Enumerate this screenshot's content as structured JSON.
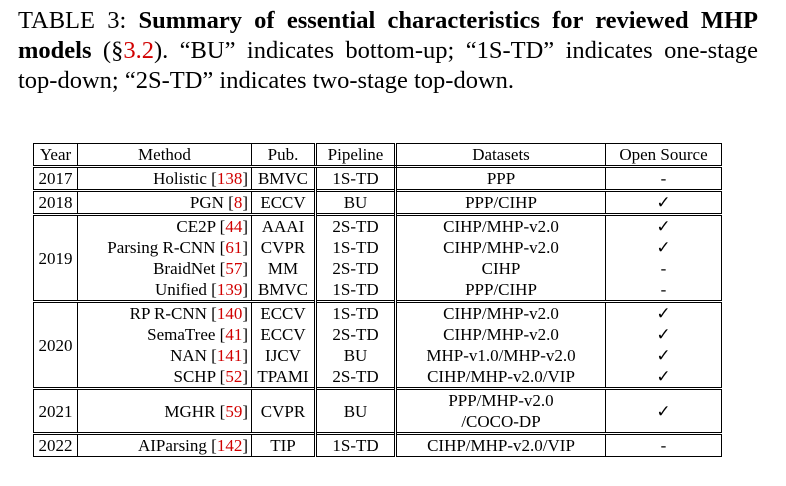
{
  "caption": {
    "label": "TABLE 3: ",
    "bold": "Summary of essential characteristics for reviewed MHP models",
    "pre_ref": " (§",
    "ref": "3.2",
    "rest": "). “BU” indicates bottom-up; “1S-TD” indicates one-stage top-down; “2S-TD” indicates two-stage top-down."
  },
  "table": {
    "header": [
      "Year",
      "Method",
      "Pub.",
      "Pipeline",
      "Datasets",
      "Open Source"
    ],
    "groups": [
      {
        "year": "2017",
        "rows": [
          {
            "method": [
              "Holistic [",
              "138",
              "]"
            ],
            "pub": "BMVC",
            "pipeline": "1S-TD",
            "datasets": [
              "PPP"
            ],
            "open": "-"
          }
        ]
      },
      {
        "year": "2018",
        "rows": [
          {
            "method": [
              "PGN [",
              "8",
              "]"
            ],
            "pub": "ECCV",
            "pipeline": "BU",
            "datasets": [
              "PPP/CIHP"
            ],
            "open": "✓"
          }
        ]
      },
      {
        "year": "2019",
        "rows": [
          {
            "method": [
              "CE2P [",
              "44",
              "]"
            ],
            "pub": "AAAI",
            "pipeline": "2S-TD",
            "datasets": [
              "CIHP/MHP-v2.0"
            ],
            "open": "✓"
          },
          {
            "method": [
              "Parsing R-CNN [",
              "61",
              "]"
            ],
            "pub": "CVPR",
            "pipeline": "1S-TD",
            "datasets": [
              "CIHP/MHP-v2.0"
            ],
            "open": "✓"
          },
          {
            "method": [
              "BraidNet [",
              "57",
              "]"
            ],
            "pub": "MM",
            "pipeline": "2S-TD",
            "datasets": [
              "CIHP"
            ],
            "open": "-"
          },
          {
            "method": [
              "Unified [",
              "139",
              "]"
            ],
            "pub": "BMVC",
            "pipeline": "1S-TD",
            "datasets": [
              "PPP/CIHP"
            ],
            "open": "-"
          }
        ]
      },
      {
        "year": "2020",
        "rows": [
          {
            "method": [
              "RP R-CNN [",
              "140",
              "]"
            ],
            "pub": "ECCV",
            "pipeline": "1S-TD",
            "datasets": [
              "CIHP/MHP-v2.0"
            ],
            "open": "✓"
          },
          {
            "method": [
              "SemaTree [",
              "41",
              "]"
            ],
            "pub": "ECCV",
            "pipeline": "2S-TD",
            "datasets": [
              "CIHP/MHP-v2.0"
            ],
            "open": "✓"
          },
          {
            "method": [
              "NAN [",
              "141",
              "]"
            ],
            "pub": "IJCV",
            "pipeline": "BU",
            "datasets": [
              "MHP-v1.0/MHP-v2.0"
            ],
            "open": "✓"
          },
          {
            "method": [
              "SCHP [",
              "52",
              "]"
            ],
            "pub": "TPAMI",
            "pipeline": "2S-TD",
            "datasets": [
              "CIHP/MHP-v2.0/VIP"
            ],
            "open": "✓"
          }
        ]
      },
      {
        "year": "2021",
        "rows": [
          {
            "method": [
              "MGHR [",
              "59",
              "]"
            ],
            "pub": "CVPR",
            "pipeline": "BU",
            "datasets": [
              "PPP/MHP-v2.0",
              "/COCO-DP"
            ],
            "open": "✓"
          }
        ]
      },
      {
        "year": "2022",
        "rows": [
          {
            "method": [
              "AIParsing [",
              "142",
              "]"
            ],
            "pub": "TIP",
            "pipeline": "1S-TD",
            "datasets": [
              "CIHP/MHP-v2.0/VIP"
            ],
            "open": "-"
          }
        ]
      }
    ]
  }
}
